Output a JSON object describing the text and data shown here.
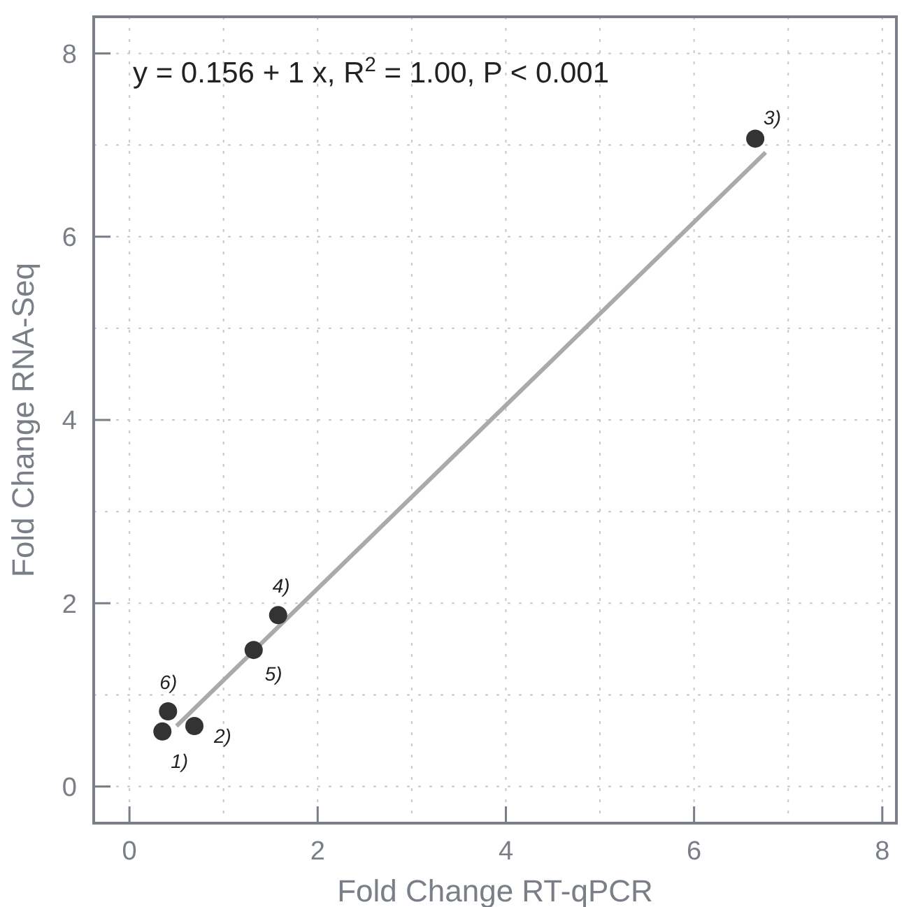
{
  "chart_data": {
    "type": "scatter",
    "xlabel": "Fold Change RT-qPCR",
    "ylabel": "Fold Change RNA-Seq",
    "xlim": [
      -0.38,
      8.15
    ],
    "ylim": [
      -0.4,
      8.4
    ],
    "xticks": [
      0,
      {
        "value": 1,
        "label": null
      },
      2,
      {
        "value": 3,
        "label": null
      },
      4,
      {
        "value": 5,
        "label": null
      },
      6,
      {
        "value": 7,
        "label": null
      },
      8
    ],
    "yticks": [
      0,
      {
        "value": 1,
        "label": null
      },
      2,
      {
        "value": 3,
        "label": null
      },
      4,
      {
        "value": 5,
        "label": null
      },
      6,
      {
        "value": 7,
        "label": null
      },
      8
    ],
    "grid": true,
    "series": [
      {
        "type": "line",
        "color": "#aaaaaa",
        "x": [
          0.5,
          6.76
        ],
        "values": [
          0.66,
          6.92
        ],
        "line_style": "solid"
      },
      {
        "color": "#333333",
        "marker": "circle",
        "x": [
          0.35,
          0.69,
          6.65,
          1.58,
          1.32,
          0.41
        ],
        "values": [
          0.6,
          0.66,
          7.07,
          1.87,
          1.49,
          0.82
        ]
      }
    ],
    "annotations": [
      {
        "text": "y = 0.156 + 1 x, R$^{2}$ = 1.00, P < 0.001"
      },
      {
        "text": "1)",
        "x": 0.35,
        "y": 0.6
      },
      {
        "text": "2)",
        "x": 0.69,
        "y": 0.66
      },
      {
        "text": "3)",
        "x": 6.65,
        "y": 7.07
      },
      {
        "text": "4)",
        "x": 1.58,
        "y": 1.87
      },
      {
        "text": "5)",
        "x": 1.32,
        "y": 1.49
      },
      {
        "text": "6)",
        "x": 0.41,
        "y": 0.82
      }
    ]
  }
}
